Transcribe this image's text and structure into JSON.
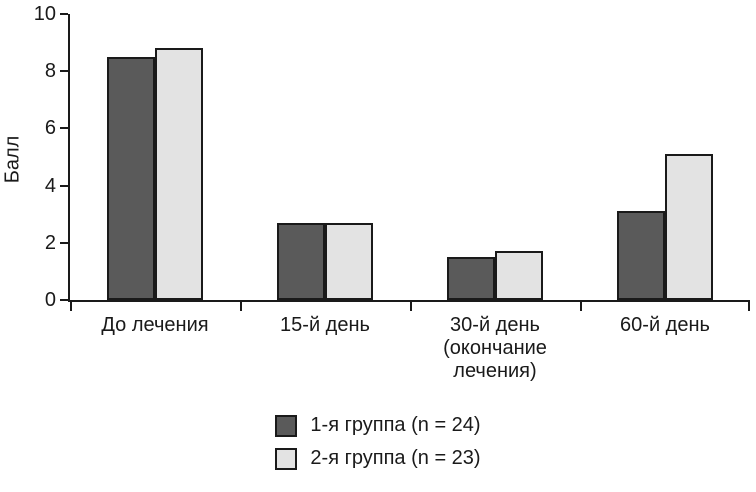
{
  "chart_data": {
    "type": "bar",
    "title": "",
    "xlabel": "",
    "ylabel": "Балл",
    "ylim": [
      0,
      10
    ],
    "yticks": [
      0,
      2,
      4,
      6,
      8,
      10
    ],
    "grid": false,
    "legend_position": "bottom",
    "bar_border_color": "#1a1a1a",
    "categories": [
      "До лечения",
      "15-й день",
      "30-й день\n(окончание\nлечения)",
      "60-й день"
    ],
    "series": [
      {
        "name": "1-я группа (n = 24)",
        "color": "#5a5a5a",
        "values": [
          8.5,
          2.7,
          1.5,
          3.1
        ]
      },
      {
        "name": "2-я группа (n = 23)",
        "color": "#e3e3e3",
        "values": [
          8.8,
          2.7,
          1.7,
          5.1
        ]
      }
    ]
  }
}
